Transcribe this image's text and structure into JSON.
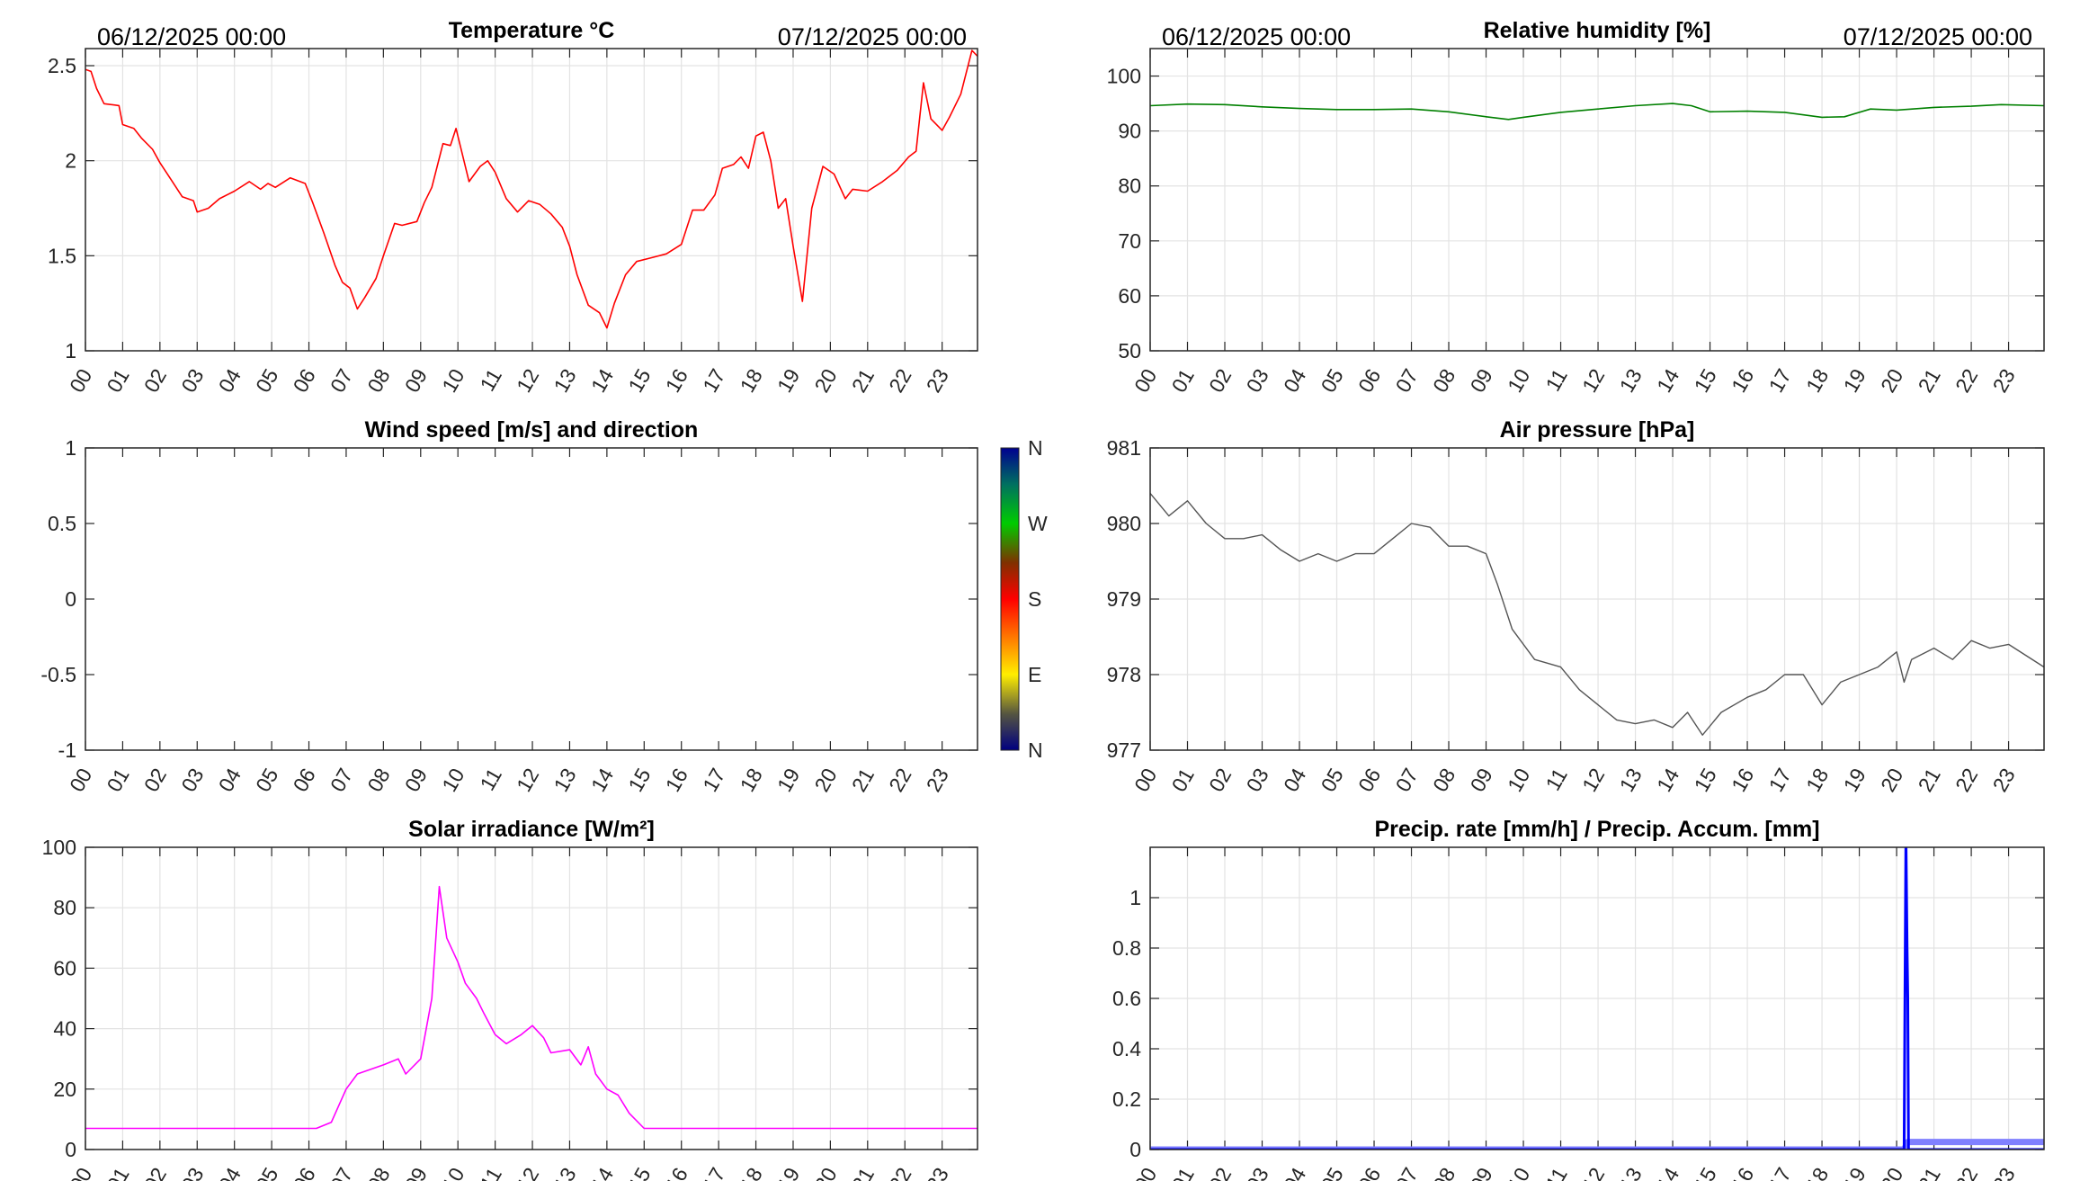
{
  "dates": {
    "start": "06/12/2025 00:00",
    "end": "07/12/2025 00:00"
  },
  "hour_labels": [
    "00",
    "01",
    "02",
    "03",
    "04",
    "05",
    "06",
    "07",
    "08",
    "09",
    "10",
    "11",
    "12",
    "13",
    "14",
    "15",
    "16",
    "17",
    "18",
    "19",
    "20",
    "21",
    "22",
    "23"
  ],
  "colorbar": {
    "labels": [
      "N",
      "W",
      "S",
      "E",
      "N"
    ],
    "meaning": "wind direction"
  },
  "chart_data": [
    {
      "id": "temp",
      "type": "line",
      "title": "Temperature °C",
      "xlim": [
        0,
        23.95
      ],
      "ylim": [
        1,
        2.59
      ],
      "yticks": [
        1,
        1.5,
        2,
        2.5
      ],
      "ytick_labels": [
        "1",
        "1.5",
        "2",
        "2.5"
      ],
      "grid": true,
      "series": [
        {
          "name": "Temperature",
          "color": "#ff0000",
          "width": 1.6,
          "points": [
            [
              0,
              2.48
            ],
            [
              0.15,
              2.47
            ],
            [
              0.3,
              2.38
            ],
            [
              0.5,
              2.3
            ],
            [
              0.9,
              2.29
            ],
            [
              1.0,
              2.19
            ],
            [
              1.3,
              2.17
            ],
            [
              1.5,
              2.12
            ],
            [
              1.8,
              2.06
            ],
            [
              2.0,
              1.99
            ],
            [
              2.3,
              1.9
            ],
            [
              2.6,
              1.81
            ],
            [
              2.9,
              1.79
            ],
            [
              3.0,
              1.73
            ],
            [
              3.3,
              1.75
            ],
            [
              3.6,
              1.8
            ],
            [
              4.0,
              1.84
            ],
            [
              4.4,
              1.89
            ],
            [
              4.7,
              1.85
            ],
            [
              4.9,
              1.88
            ],
            [
              5.1,
              1.86
            ],
            [
              5.5,
              1.91
            ],
            [
              5.9,
              1.88
            ],
            [
              6.1,
              1.78
            ],
            [
              6.4,
              1.62
            ],
            [
              6.7,
              1.45
            ],
            [
              6.9,
              1.36
            ],
            [
              7.1,
              1.33
            ],
            [
              7.3,
              1.22
            ],
            [
              7.5,
              1.28
            ],
            [
              7.8,
              1.38
            ],
            [
              8.0,
              1.5
            ],
            [
              8.3,
              1.67
            ],
            [
              8.5,
              1.66
            ],
            [
              8.9,
              1.68
            ],
            [
              9.1,
              1.78
            ],
            [
              9.3,
              1.86
            ],
            [
              9.6,
              2.09
            ],
            [
              9.8,
              2.08
            ],
            [
              9.95,
              2.17
            ],
            [
              10.1,
              2.05
            ],
            [
              10.3,
              1.89
            ],
            [
              10.6,
              1.97
            ],
            [
              10.8,
              2.0
            ],
            [
              11.0,
              1.94
            ],
            [
              11.3,
              1.8
            ],
            [
              11.6,
              1.73
            ],
            [
              11.9,
              1.79
            ],
            [
              12.2,
              1.77
            ],
            [
              12.5,
              1.72
            ],
            [
              12.8,
              1.65
            ],
            [
              13.0,
              1.55
            ],
            [
              13.2,
              1.4
            ],
            [
              13.5,
              1.24
            ],
            [
              13.8,
              1.2
            ],
            [
              14.0,
              1.12
            ],
            [
              14.2,
              1.25
            ],
            [
              14.5,
              1.4
            ],
            [
              14.8,
              1.47
            ],
            [
              15.2,
              1.49
            ],
            [
              15.6,
              1.51
            ],
            [
              16.0,
              1.56
            ],
            [
              16.3,
              1.74
            ],
            [
              16.6,
              1.74
            ],
            [
              16.9,
              1.82
            ],
            [
              17.1,
              1.96
            ],
            [
              17.4,
              1.98
            ],
            [
              17.6,
              2.02
            ],
            [
              17.8,
              1.96
            ],
            [
              18.0,
              2.13
            ],
            [
              18.2,
              2.15
            ],
            [
              18.4,
              2.0
            ],
            [
              18.6,
              1.75
            ],
            [
              18.8,
              1.8
            ],
            [
              19.0,
              1.55
            ],
            [
              19.25,
              1.26
            ],
            [
              19.5,
              1.75
            ],
            [
              19.8,
              1.97
            ],
            [
              20.1,
              1.93
            ],
            [
              20.4,
              1.8
            ],
            [
              20.6,
              1.85
            ],
            [
              21.0,
              1.84
            ],
            [
              21.4,
              1.89
            ],
            [
              21.8,
              1.95
            ],
            [
              22.1,
              2.02
            ],
            [
              22.3,
              2.05
            ],
            [
              22.5,
              2.41
            ],
            [
              22.7,
              2.22
            ],
            [
              23.0,
              2.16
            ],
            [
              23.2,
              2.23
            ],
            [
              23.5,
              2.35
            ],
            [
              23.8,
              2.58
            ],
            [
              23.95,
              2.55
            ]
          ]
        }
      ]
    },
    {
      "id": "hum",
      "type": "line",
      "title": "Relative humidity [%]",
      "xlim": [
        0,
        23.95
      ],
      "ylim": [
        50,
        105
      ],
      "yticks": [
        50,
        60,
        70,
        80,
        90,
        100
      ],
      "ytick_labels": [
        "50",
        "60",
        "70",
        "80",
        "90",
        "100"
      ],
      "grid": true,
      "series": [
        {
          "name": "Relative humidity",
          "color": "#008000",
          "width": 1.6,
          "points": [
            [
              0,
              94.6
            ],
            [
              1,
              94.9
            ],
            [
              2,
              94.8
            ],
            [
              3,
              94.4
            ],
            [
              4,
              94.1
            ],
            [
              5,
              93.9
            ],
            [
              6,
              93.9
            ],
            [
              7,
              94.0
            ],
            [
              8,
              93.5
            ],
            [
              9,
              92.6
            ],
            [
              9.6,
              92.1
            ],
            [
              10,
              92.5
            ],
            [
              11,
              93.4
            ],
            [
              12,
              94
            ],
            [
              13,
              94.6
            ],
            [
              14,
              95
            ],
            [
              14.5,
              94.6
            ],
            [
              15,
              93.5
            ],
            [
              16,
              93.6
            ],
            [
              17,
              93.4
            ],
            [
              18,
              92.5
            ],
            [
              18.6,
              92.6
            ],
            [
              19.3,
              94
            ],
            [
              20,
              93.8
            ],
            [
              21,
              94.3
            ],
            [
              22,
              94.5
            ],
            [
              22.8,
              94.8
            ],
            [
              23.95,
              94.6
            ]
          ]
        }
      ]
    },
    {
      "id": "wind",
      "type": "line",
      "title": "Wind speed [m/s] and direction",
      "xlim": [
        0,
        23.95
      ],
      "ylim": [
        -1,
        1
      ],
      "yticks": [
        -1,
        -0.5,
        0,
        0.5,
        1
      ],
      "ytick_labels": [
        "-1",
        "-0.5",
        "0",
        "0.5",
        "1"
      ],
      "grid": false,
      "series": []
    },
    {
      "id": "pres",
      "type": "line",
      "title": "Air pressure [hPa]",
      "xlim": [
        0,
        23.95
      ],
      "ylim": [
        977,
        981
      ],
      "yticks": [
        977,
        978,
        979,
        980,
        981
      ],
      "ytick_labels": [
        "977",
        "978",
        "979",
        "980",
        "981"
      ],
      "grid": true,
      "series": [
        {
          "name": "Air pressure",
          "color": "#555555",
          "width": 1.4,
          "points": [
            [
              0,
              980.4
            ],
            [
              0.5,
              980.1
            ],
            [
              1,
              980.3
            ],
            [
              1.5,
              980.0
            ],
            [
              2,
              979.8
            ],
            [
              2.5,
              979.8
            ],
            [
              3,
              979.85
            ],
            [
              3.5,
              979.65
            ],
            [
              4,
              979.5
            ],
            [
              4.5,
              979.6
            ],
            [
              5,
              979.5
            ],
            [
              5.5,
              979.6
            ],
            [
              6,
              979.6
            ],
            [
              6.5,
              979.8
            ],
            [
              7,
              980.0
            ],
            [
              7.5,
              979.95
            ],
            [
              8,
              979.7
            ],
            [
              8.5,
              979.7
            ],
            [
              9,
              979.6
            ],
            [
              9.3,
              979.2
            ],
            [
              9.7,
              978.6
            ],
            [
              10.3,
              978.2
            ],
            [
              11,
              978.1
            ],
            [
              11.5,
              977.8
            ],
            [
              12,
              977.6
            ],
            [
              12.5,
              977.4
            ],
            [
              13,
              977.35
            ],
            [
              13.5,
              977.4
            ],
            [
              14,
              977.3
            ],
            [
              14.4,
              977.5
            ],
            [
              14.8,
              977.2
            ],
            [
              15.3,
              977.5
            ],
            [
              16,
              977.7
            ],
            [
              16.5,
              977.8
            ],
            [
              17,
              978.0
            ],
            [
              17.5,
              978.0
            ],
            [
              18,
              977.6
            ],
            [
              18.5,
              977.9
            ],
            [
              19,
              978.0
            ],
            [
              19.5,
              978.1
            ],
            [
              20,
              978.3
            ],
            [
              20.2,
              977.9
            ],
            [
              20.4,
              978.2
            ],
            [
              21,
              978.35
            ],
            [
              21.5,
              978.2
            ],
            [
              22,
              978.45
            ],
            [
              22.5,
              978.35
            ],
            [
              23,
              978.4
            ],
            [
              23.95,
              978.1
            ]
          ]
        }
      ]
    },
    {
      "id": "solar",
      "type": "line",
      "title": "Solar irradiance [W/m²]",
      "xlim": [
        0,
        23.95
      ],
      "ylim": [
        0,
        100
      ],
      "yticks": [
        0,
        20,
        40,
        60,
        80,
        100
      ],
      "ytick_labels": [
        "0",
        "20",
        "40",
        "60",
        "80",
        "100"
      ],
      "grid": true,
      "series": [
        {
          "name": "Solar irradiance",
          "color": "#ff00ff",
          "width": 1.6,
          "points": [
            [
              0,
              7
            ],
            [
              6.2,
              7
            ],
            [
              6.6,
              9
            ],
            [
              7,
              20
            ],
            [
              7.3,
              25
            ],
            [
              8,
              28
            ],
            [
              8.4,
              30
            ],
            [
              8.6,
              25
            ],
            [
              9,
              30
            ],
            [
              9.3,
              50
            ],
            [
              9.5,
              87
            ],
            [
              9.7,
              70
            ],
            [
              10,
              62
            ],
            [
              10.2,
              55
            ],
            [
              10.5,
              50
            ],
            [
              10.7,
              45
            ],
            [
              11,
              38
            ],
            [
              11.3,
              35
            ],
            [
              11.7,
              38
            ],
            [
              12,
              41
            ],
            [
              12.3,
              37
            ],
            [
              12.5,
              32
            ],
            [
              13,
              33
            ],
            [
              13.3,
              28
            ],
            [
              13.5,
              34
            ],
            [
              13.7,
              25
            ],
            [
              14,
              20
            ],
            [
              14.3,
              18
            ],
            [
              14.6,
              12
            ],
            [
              15,
              7
            ],
            [
              23.95,
              7
            ]
          ]
        }
      ]
    },
    {
      "id": "precip",
      "type": "line",
      "title": "Precip. rate [mm/h] / Precip. Accum. [mm]",
      "xlim": [
        0,
        23.95
      ],
      "ylim": [
        0,
        1.2
      ],
      "yticks": [
        0,
        0.2,
        0.4,
        0.6,
        0.8,
        1
      ],
      "ytick_labels": [
        "0",
        "0.2",
        "0.4",
        "0.6",
        "0.8",
        "1"
      ],
      "grid": true,
      "series": [
        {
          "name": "Precip. Accum.",
          "color": "#8080ff",
          "width": 7,
          "points": [
            [
              0,
              0
            ],
            [
              20.2,
              0
            ],
            [
              20.3,
              0.03
            ],
            [
              23.95,
              0.03
            ]
          ]
        },
        {
          "name": "Precip. rate",
          "color": "#0000ff",
          "width": 3,
          "points": [
            [
              0,
              0
            ],
            [
              20.2,
              0
            ],
            [
              20.22,
              0.52
            ],
            [
              20.25,
              1.25
            ],
            [
              20.28,
              0.8
            ],
            [
              20.3,
              0.6
            ],
            [
              20.32,
              0
            ],
            [
              23.95,
              0
            ]
          ]
        }
      ]
    }
  ]
}
